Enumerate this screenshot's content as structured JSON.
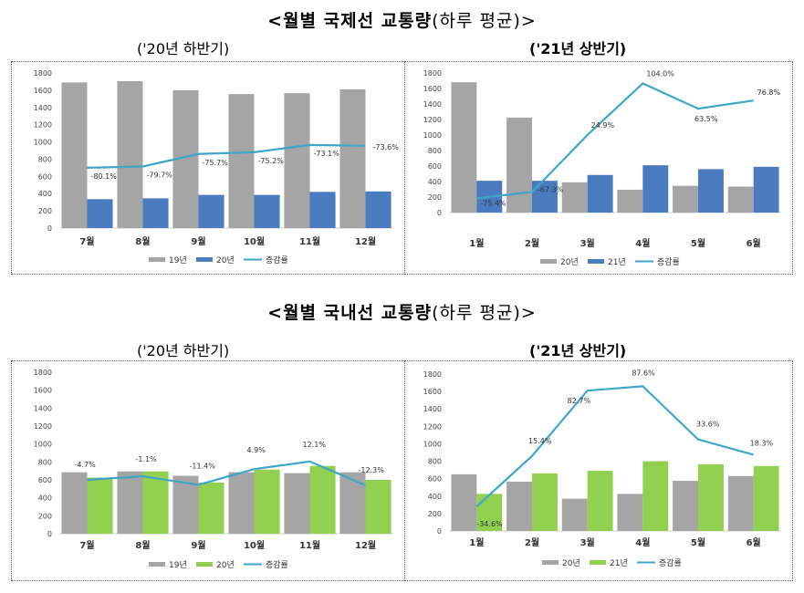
{
  "sections": [
    {
      "title": "<월별 국제선 교통량",
      "title_paren": "(하루 평균)>",
      "left_subtitle": "('20년 하반기)",
      "right_subtitle": "('21년 상반기)"
    },
    {
      "title": "<월별 국내선 교통량",
      "title_paren": "(하루 평균)>",
      "left_subtitle": "('20년 하반기)",
      "right_subtitle": "('21년 상반기)"
    }
  ],
  "colors": {
    "gray": "#a5a5a5",
    "blue": "#4a7bbf",
    "green": "#92d050",
    "line": "#3fa6c8"
  },
  "chart_data": [
    {
      "type": "bar",
      "categories": [
        "7월",
        "8월",
        "9월",
        "10월",
        "11월",
        "12월"
      ],
      "ylim": [
        0,
        1800
      ],
      "yticks": [
        0,
        200,
        400,
        600,
        800,
        1000,
        1200,
        1400,
        1600,
        1800
      ],
      "series": [
        {
          "name": "19년",
          "values": [
            1690,
            1705,
            1600,
            1555,
            1565,
            1610
          ],
          "color": "gray"
        },
        {
          "name": "20년",
          "values": [
            335,
            345,
            385,
            385,
            420,
            425
          ],
          "color": "blue"
        }
      ],
      "line": {
        "name": "증감률",
        "plot_values": [
          700,
          715,
          860,
          880,
          965,
          955
        ],
        "labels": [
          "-80.1%",
          "-79.7%",
          "-75.7%",
          "-75.2%",
          "-73.1%",
          "-73.6%"
        ]
      }
    },
    {
      "type": "bar",
      "categories": [
        "1월",
        "2월",
        "3월",
        "4월",
        "5월",
        "6월"
      ],
      "ylim": [
        0,
        1800
      ],
      "yticks": [
        0,
        200,
        400,
        600,
        800,
        1000,
        1200,
        1400,
        1600,
        1800
      ],
      "series": [
        {
          "name": "20년",
          "values": [
            1680,
            1225,
            390,
            295,
            345,
            335
          ],
          "color": "gray"
        },
        {
          "name": "21년",
          "values": [
            410,
            410,
            485,
            610,
            560,
            590
          ],
          "color": "blue"
        }
      ],
      "line": {
        "name": "증감률",
        "plot_values": [
          185,
          265,
          1000,
          1665,
          1340,
          1445
        ],
        "labels": [
          "-75.4%",
          "-67.3%",
          "24.9%",
          "104.0%",
          "63.5%",
          "76.8%"
        ]
      }
    },
    {
      "type": "bar",
      "categories": [
        "7월",
        "8월",
        "9월",
        "10월",
        "11월",
        "12월"
      ],
      "ylim": [
        0,
        1800
      ],
      "yticks": [
        0,
        200,
        400,
        600,
        800,
        1000,
        1200,
        1400,
        1600,
        1800
      ],
      "series": [
        {
          "name": "19년",
          "values": [
            685,
            695,
            645,
            685,
            675,
            685
          ],
          "color": "gray"
        },
        {
          "name": "20년",
          "values": [
            625,
            695,
            570,
            715,
            755,
            600
          ],
          "color": "green"
        }
      ],
      "line": {
        "name": "증감률",
        "plot_values": [
          600,
          640,
          545,
          720,
          805,
          540
        ],
        "labels": [
          "-4.7%",
          "-1.1%",
          "-11.4%",
          "4.9%",
          "12.1%",
          "-12.3%"
        ]
      }
    },
    {
      "type": "bar",
      "categories": [
        "1월",
        "2월",
        "3월",
        "4월",
        "5월",
        "6월"
      ],
      "ylim": [
        0,
        1800
      ],
      "yticks": [
        0,
        200,
        400,
        600,
        800,
        1000,
        1200,
        1400,
        1600,
        1800
      ],
      "series": [
        {
          "name": "20년",
          "values": [
            650,
            565,
            370,
            425,
            575,
            630
          ],
          "color": "gray"
        },
        {
          "name": "21년",
          "values": [
            425,
            660,
            690,
            800,
            765,
            745
          ],
          "color": "green"
        }
      ],
      "line": {
        "name": "증감률",
        "plot_values": [
          280,
          860,
          1610,
          1660,
          1050,
          875
        ],
        "labels": [
          "-34.6%",
          "15.4%",
          "82.7%",
          "87.6%",
          "33.6%",
          "18.3%"
        ]
      }
    }
  ]
}
